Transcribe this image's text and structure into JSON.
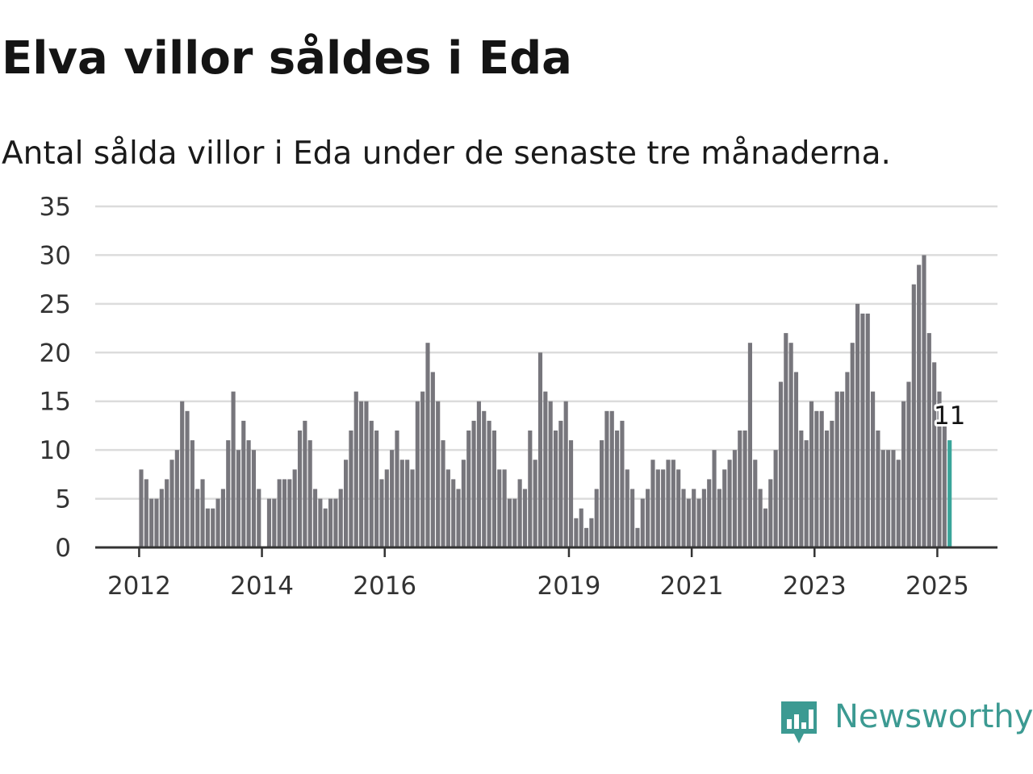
{
  "title": "Elva villor såldes i Eda",
  "subtitle": "Antal sålda villor i Eda under de senaste tre månaderna.",
  "brand": {
    "name": "Newsworthy",
    "icon": "newsworthy-logo-icon",
    "color": "#3c9a92"
  },
  "chart_data": {
    "type": "bar",
    "start_month": "2012-01",
    "end_month": "2025-03",
    "values": [
      8,
      7,
      5,
      5,
      6,
      7,
      9,
      10,
      15,
      14,
      11,
      6,
      7,
      4,
      4,
      5,
      6,
      11,
      16,
      10,
      13,
      11,
      10,
      6,
      0,
      5,
      5,
      7,
      7,
      7,
      8,
      12,
      13,
      11,
      6,
      5,
      4,
      5,
      5,
      6,
      9,
      12,
      16,
      15,
      15,
      13,
      12,
      7,
      8,
      10,
      12,
      9,
      9,
      8,
      15,
      16,
      21,
      18,
      15,
      11,
      8,
      7,
      6,
      9,
      12,
      13,
      15,
      14,
      13,
      12,
      8,
      8,
      5,
      5,
      7,
      6,
      12,
      9,
      20,
      16,
      15,
      12,
      13,
      15,
      11,
      3,
      4,
      2,
      3,
      6,
      11,
      14,
      14,
      12,
      13,
      8,
      6,
      2,
      5,
      6,
      9,
      8,
      8,
      9,
      9,
      8,
      6,
      5,
      6,
      5,
      6,
      7,
      10,
      6,
      8,
      9,
      10,
      12,
      12,
      21,
      9,
      6,
      4,
      7,
      10,
      17,
      22,
      21,
      18,
      12,
      11,
      15,
      14,
      14,
      12,
      13,
      16,
      16,
      18,
      21,
      25,
      24,
      24,
      16,
      12,
      10,
      10,
      10,
      9,
      15,
      17,
      27,
      29,
      30,
      22,
      19,
      16,
      13,
      11
    ],
    "ylim": [
      0,
      35
    ],
    "yticks": [
      0,
      5,
      10,
      15,
      20,
      25,
      30,
      35
    ],
    "xticks": [
      "2012",
      "2014",
      "2016",
      "2019",
      "2021",
      "2023",
      "2025"
    ],
    "highlight_last": true,
    "last_value_label": "11",
    "bar_color": "#77767c",
    "highlight_color": "#3aa59a",
    "grid": true,
    "legend": "none"
  }
}
